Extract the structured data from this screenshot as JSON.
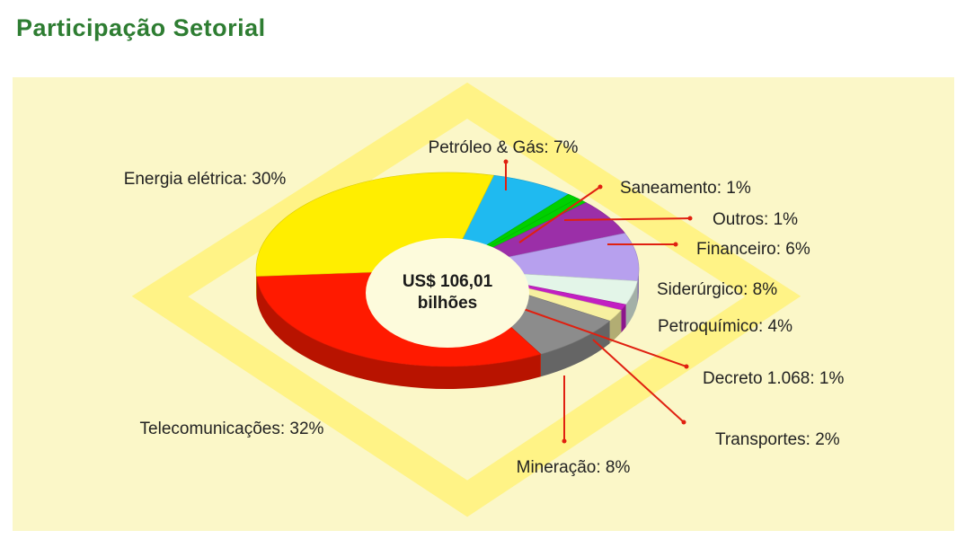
{
  "page": {
    "title": "Participação Setorial"
  },
  "chart_data": {
    "type": "pie",
    "title": "Participação Setorial",
    "center_label": [
      "US$ 106,01",
      "bilhões"
    ],
    "unit": "%",
    "slices": [
      {
        "name": "Petróleo & Gás",
        "value": 7,
        "label": "Petróleo & Gás: 7%",
        "color": "#1fbaf0"
      },
      {
        "name": "Saneamento",
        "value": 1,
        "label": "Saneamento: 1%",
        "color": "#00d000"
      },
      {
        "name": "Outros",
        "value": 1,
        "label": "Outros: 1%",
        "color": "#00d000"
      },
      {
        "name": "Financeiro",
        "value": 6,
        "label": "Financeiro: 6%",
        "color": "#9b2fa8"
      },
      {
        "name": "Siderúrgico",
        "value": 8,
        "label": "Siderúrgico: 8%",
        "color": "#b7a0ee"
      },
      {
        "name": "Petroquímico",
        "value": 4,
        "label": "Petroquímico: 4%",
        "color": "#e3f5e8"
      },
      {
        "name": "Decreto 1.068",
        "value": 1,
        "label": "Decreto 1.068: 1%",
        "color": "#c21fc2"
      },
      {
        "name": "Transportes",
        "value": 2,
        "label": "Transportes: 2%",
        "color": "#f7f0a0"
      },
      {
        "name": "Mineração",
        "value": 8,
        "label": "Mineração: 8%",
        "color": "#8c8c8c"
      },
      {
        "name": "Telecomunicações",
        "value": 32,
        "label": "Telecomunicações: 32%",
        "color": "#ff1a00"
      },
      {
        "name": "Energia elétrica",
        "value": 30,
        "label": "Energia elétrica: 30%",
        "color": "#ffee00"
      }
    ]
  }
}
